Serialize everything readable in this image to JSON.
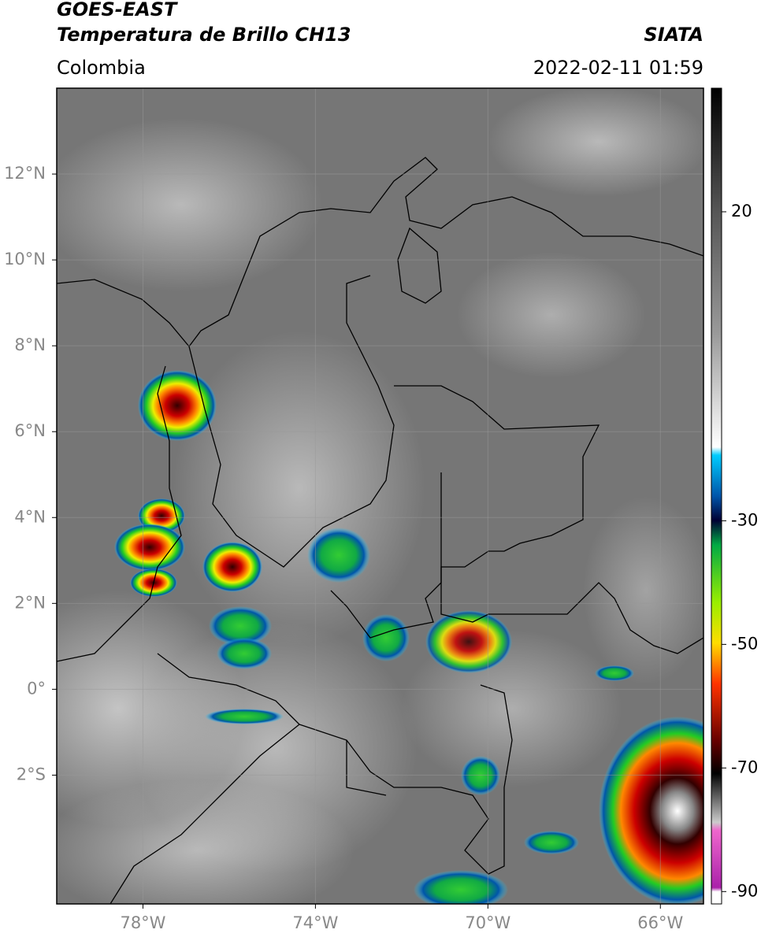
{
  "header": {
    "title": "GOES-EAST",
    "subtitle": "Temperatura de Brillo CH13",
    "region": "Colombia",
    "source": "SIATA",
    "datetime": "2022-02-11 01:59"
  },
  "map": {
    "xlim": [
      -80,
      -65
    ],
    "ylim": [
      -5,
      14
    ],
    "grid": true,
    "xticks": [
      {
        "value": -78,
        "label": "78°W"
      },
      {
        "value": -74,
        "label": "74°W"
      },
      {
        "value": -70,
        "label": "70°W"
      },
      {
        "value": -66,
        "label": "66°W"
      }
    ],
    "yticks": [
      {
        "value": 12,
        "label": "12°N"
      },
      {
        "value": 10,
        "label": "10°N"
      },
      {
        "value": 8,
        "label": "8°N"
      },
      {
        "value": 6,
        "label": "6°N"
      },
      {
        "value": 4,
        "label": "4°N"
      },
      {
        "value": 2,
        "label": "2°N"
      },
      {
        "value": 0,
        "label": "0°"
      },
      {
        "value": -2,
        "label": "2°S"
      }
    ]
  },
  "colorbar": {
    "lim": [
      -92,
      40
    ],
    "ticks": [
      20,
      -30,
      -50,
      -70,
      -90
    ]
  }
}
